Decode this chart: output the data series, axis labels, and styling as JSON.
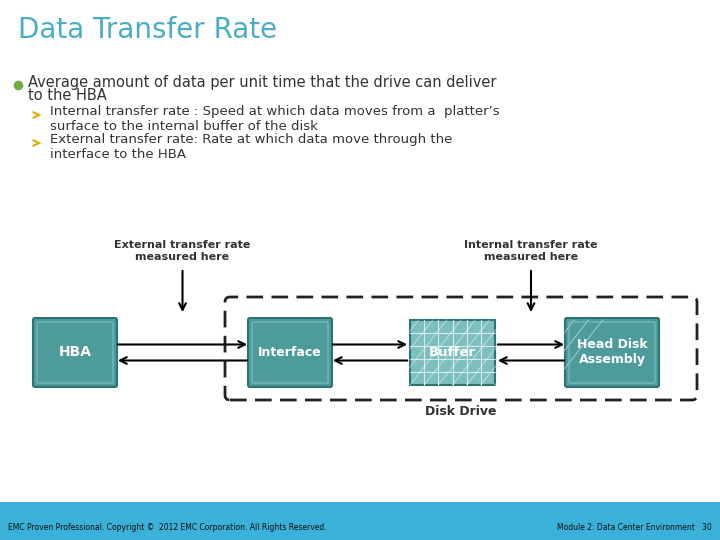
{
  "title": "Data Transfer Rate",
  "title_color": "#4BACC6",
  "title_fontsize": 20,
  "bg_color": "#FFFFFF",
  "bullet_color": "#70AD47",
  "arrow_color": "#E8A800",
  "bullet_text": "Average amount of data per unit time that the drive can deliver\nto the HBA",
  "sub_bullet1": "Internal transfer rate : Speed at which data moves from a  platter’s\nsurface to the internal buffer of the disk",
  "sub_bullet2": "External transfer rate: Rate at which data move through the\ninterface to the HBA",
  "ext_label": "External transfer rate\nmeasured here",
  "int_label": "Internal transfer rate\nmeasured here",
  "hba_label": "HBA",
  "interface_label": "Interface",
  "buffer_label": "Buffer",
  "hda_label": "Head Disk\nAssembly",
  "disk_drive_label": "Disk Drive",
  "box_color_teal": "#4E9B9B",
  "box_color_teal_dark": "#3A7A7A",
  "box_color_buffer": "#7BBFBF",
  "box_border_teal": "#2E7272",
  "dashed_rect_color": "#222222",
  "footer_bg": "#3BB0D8",
  "footer_text_left": "EMC Proven Professional. Copyright ©  2012 EMC Corporation. All Rights Reserved.",
  "footer_text_right": "Module 2: Data Center Environment   30",
  "footer_color": "#FFFFFF",
  "text_color": "#333333",
  "text_fontsize": 10.5,
  "sub_text_fontsize": 9.5
}
